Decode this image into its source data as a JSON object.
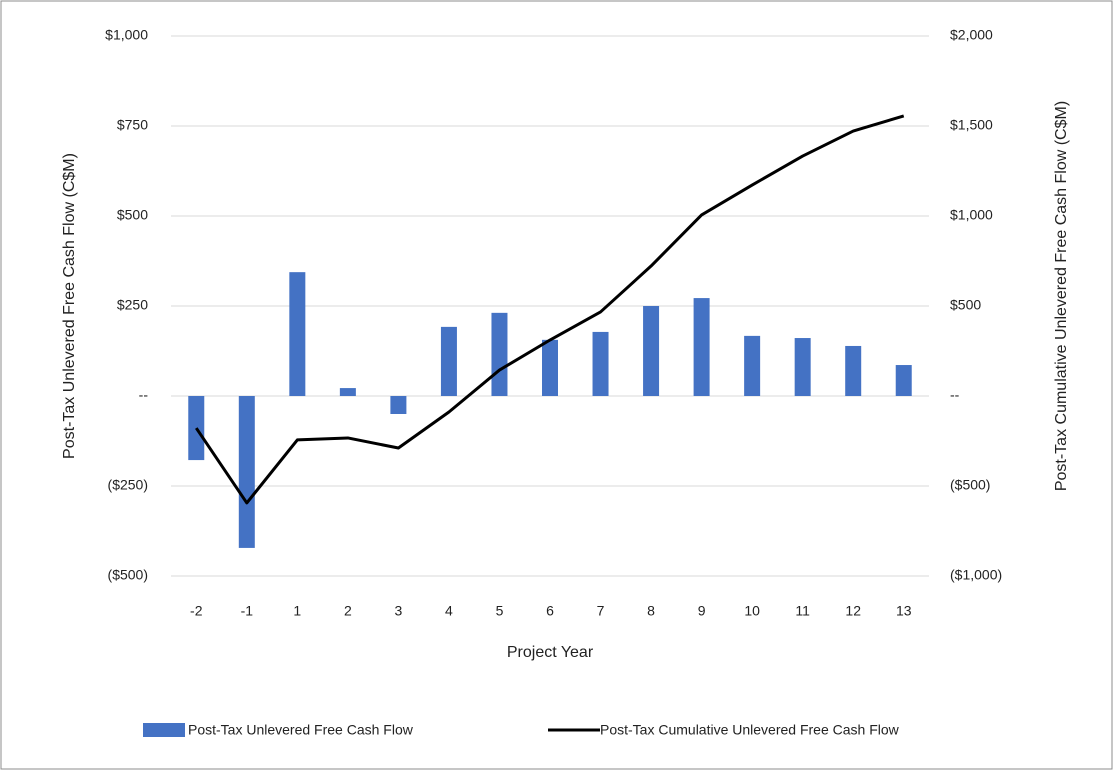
{
  "chart_data": {
    "type": "bar_line",
    "categories": [
      "-2",
      "-1",
      "1",
      "2",
      "3",
      "4",
      "5",
      "6",
      "7",
      "8",
      "9",
      "10",
      "11",
      "12",
      "13"
    ],
    "x_label": "Project Year",
    "y_label": "Post-Tax Unlevered Free Cash Flow (C$M)",
    "y2_label": "Post-Tax Cumulative Unlevered Free Cash Flow (C$M)",
    "ylim": [
      -500,
      1000
    ],
    "yticks": [
      {
        "value": 1000,
        "label": "$1,000"
      },
      {
        "value": 750,
        "label": "$750"
      },
      {
        "value": 500,
        "label": "$500"
      },
      {
        "value": 250,
        "label": "$250"
      },
      {
        "value": 0,
        "label": "--"
      },
      {
        "value": -250,
        "label": "($250)"
      },
      {
        "value": -500,
        "label": "($500)"
      }
    ],
    "y2lim": [
      -1000,
      2000
    ],
    "y2ticks": [
      {
        "value": 2000,
        "label": "$2,000"
      },
      {
        "value": 1500,
        "label": "$1,500"
      },
      {
        "value": 1000,
        "label": "$1,000"
      },
      {
        "value": 500,
        "label": "$500"
      },
      {
        "value": 0,
        "label": "--"
      },
      {
        "value": -500,
        "label": "($500)"
      },
      {
        "value": -1000,
        "label": "($1,000)"
      }
    ],
    "grid": true,
    "series": [
      {
        "name": "Post-Tax Unlevered Free Cash Flow",
        "type": "bar",
        "color": "#4472c4",
        "values": [
          -178,
          -422,
          344,
          22,
          -50,
          192,
          231,
          156,
          178,
          250,
          272,
          167,
          161,
          139,
          86
        ]
      },
      {
        "name": "Post-Tax Cumulative Unlevered Free Cash Flow",
        "type": "line",
        "axis": "y2",
        "color": "#000000",
        "values": [
          -178,
          -594,
          -244,
          -233,
          -289,
          -89,
          144,
          311,
          467,
          722,
          1006,
          1172,
          1333,
          1472,
          1556
        ]
      }
    ]
  }
}
